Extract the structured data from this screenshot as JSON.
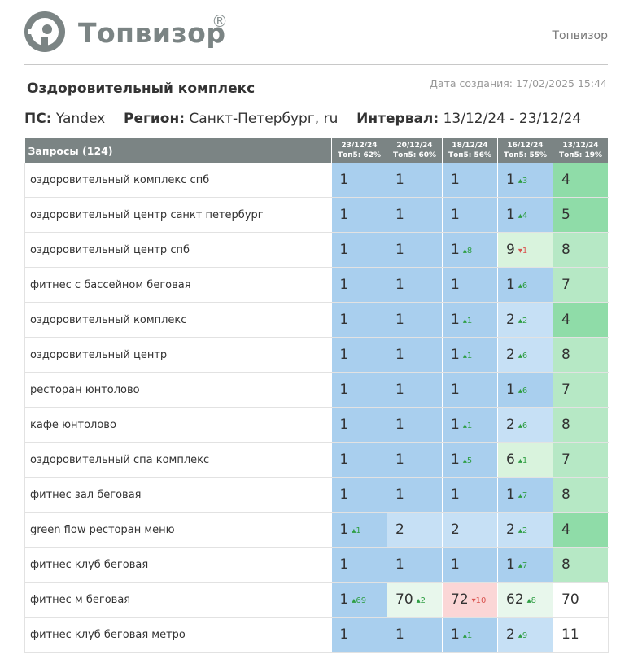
{
  "brand": {
    "name": "Топвизор",
    "reg_mark": "®",
    "header_right": "Топвизор"
  },
  "report": {
    "title": "Оздоровительный комплекс",
    "created": "Дата создания: 17/02/2025 15:44",
    "ps_label": "ПС:",
    "ps_value": "Yandex",
    "region_label": "Регион:",
    "region_value": "Санкт-Петербург, ru",
    "interval_label": "Интервал:",
    "interval_value": "13/12/24 - 23/12/24"
  },
  "table": {
    "query_header": "Запросы (124)",
    "date_columns": [
      {
        "date": "23/12/24",
        "top": "Топ5: 62%"
      },
      {
        "date": "20/12/24",
        "top": "Топ5: 60%"
      },
      {
        "date": "18/12/24",
        "top": "Топ5: 56%"
      },
      {
        "date": "16/12/24",
        "top": "Топ5: 55%"
      },
      {
        "date": "13/12/24",
        "top": "Топ5: 19%"
      }
    ],
    "rows": [
      {
        "query": "оздоровительный комплекс спб",
        "cells": [
          {
            "v": "1",
            "d": "",
            "dir": "",
            "c": "blue"
          },
          {
            "v": "1",
            "d": "",
            "dir": "",
            "c": "blue"
          },
          {
            "v": "1",
            "d": "",
            "dir": "",
            "c": "blue"
          },
          {
            "v": "1",
            "d": "3",
            "dir": "up",
            "c": "blue"
          },
          {
            "v": "4",
            "d": "",
            "dir": "",
            "c": "green"
          }
        ]
      },
      {
        "query": "оздоровительный центр санкт петербург",
        "cells": [
          {
            "v": "1",
            "d": "",
            "dir": "",
            "c": "blue"
          },
          {
            "v": "1",
            "d": "",
            "dir": "",
            "c": "blue"
          },
          {
            "v": "1",
            "d": "",
            "dir": "",
            "c": "blue"
          },
          {
            "v": "1",
            "d": "4",
            "dir": "up",
            "c": "blue"
          },
          {
            "v": "5",
            "d": "",
            "dir": "",
            "c": "green"
          }
        ]
      },
      {
        "query": "оздоровительный центр спб",
        "cells": [
          {
            "v": "1",
            "d": "",
            "dir": "",
            "c": "blue"
          },
          {
            "v": "1",
            "d": "",
            "dir": "",
            "c": "blue"
          },
          {
            "v": "1",
            "d": "8",
            "dir": "up",
            "c": "blue"
          },
          {
            "v": "9",
            "d": "1",
            "dir": "down",
            "c": "lgreen"
          },
          {
            "v": "8",
            "d": "",
            "dir": "",
            "c": "mgreen"
          }
        ]
      },
      {
        "query": "фитнес с бассейном беговая",
        "cells": [
          {
            "v": "1",
            "d": "",
            "dir": "",
            "c": "blue"
          },
          {
            "v": "1",
            "d": "",
            "dir": "",
            "c": "blue"
          },
          {
            "v": "1",
            "d": "",
            "dir": "",
            "c": "blue"
          },
          {
            "v": "1",
            "d": "6",
            "dir": "up",
            "c": "blue"
          },
          {
            "v": "7",
            "d": "",
            "dir": "",
            "c": "mgreen"
          }
        ]
      },
      {
        "query": "оздоровительный комплекс",
        "cells": [
          {
            "v": "1",
            "d": "",
            "dir": "",
            "c": "blue"
          },
          {
            "v": "1",
            "d": "",
            "dir": "",
            "c": "blue"
          },
          {
            "v": "1",
            "d": "1",
            "dir": "up",
            "c": "blue"
          },
          {
            "v": "2",
            "d": "2",
            "dir": "up",
            "c": "lblue"
          },
          {
            "v": "4",
            "d": "",
            "dir": "",
            "c": "green"
          }
        ]
      },
      {
        "query": "оздоровительный центр",
        "cells": [
          {
            "v": "1",
            "d": "",
            "dir": "",
            "c": "blue"
          },
          {
            "v": "1",
            "d": "",
            "dir": "",
            "c": "blue"
          },
          {
            "v": "1",
            "d": "1",
            "dir": "up",
            "c": "blue"
          },
          {
            "v": "2",
            "d": "6",
            "dir": "up",
            "c": "lblue"
          },
          {
            "v": "8",
            "d": "",
            "dir": "",
            "c": "mgreen"
          }
        ]
      },
      {
        "query": "ресторан юнтолово",
        "cells": [
          {
            "v": "1",
            "d": "",
            "dir": "",
            "c": "blue"
          },
          {
            "v": "1",
            "d": "",
            "dir": "",
            "c": "blue"
          },
          {
            "v": "1",
            "d": "",
            "dir": "",
            "c": "blue"
          },
          {
            "v": "1",
            "d": "6",
            "dir": "up",
            "c": "blue"
          },
          {
            "v": "7",
            "d": "",
            "dir": "",
            "c": "mgreen"
          }
        ]
      },
      {
        "query": "кафе юнтолово",
        "cells": [
          {
            "v": "1",
            "d": "",
            "dir": "",
            "c": "blue"
          },
          {
            "v": "1",
            "d": "",
            "dir": "",
            "c": "blue"
          },
          {
            "v": "1",
            "d": "1",
            "dir": "up",
            "c": "blue"
          },
          {
            "v": "2",
            "d": "6",
            "dir": "up",
            "c": "lblue"
          },
          {
            "v": "8",
            "d": "",
            "dir": "",
            "c": "mgreen"
          }
        ]
      },
      {
        "query": "оздоровительный спа комплекс",
        "cells": [
          {
            "v": "1",
            "d": "",
            "dir": "",
            "c": "blue"
          },
          {
            "v": "1",
            "d": "",
            "dir": "",
            "c": "blue"
          },
          {
            "v": "1",
            "d": "5",
            "dir": "up",
            "c": "blue"
          },
          {
            "v": "6",
            "d": "1",
            "dir": "up",
            "c": "lgreen"
          },
          {
            "v": "7",
            "d": "",
            "dir": "",
            "c": "mgreen"
          }
        ]
      },
      {
        "query": "фитнес зал беговая",
        "cells": [
          {
            "v": "1",
            "d": "",
            "dir": "",
            "c": "blue"
          },
          {
            "v": "1",
            "d": "",
            "dir": "",
            "c": "blue"
          },
          {
            "v": "1",
            "d": "",
            "dir": "",
            "c": "blue"
          },
          {
            "v": "1",
            "d": "7",
            "dir": "up",
            "c": "blue"
          },
          {
            "v": "8",
            "d": "",
            "dir": "",
            "c": "mgreen"
          }
        ]
      },
      {
        "query": "green flow ресторан меню",
        "cells": [
          {
            "v": "1",
            "d": "1",
            "dir": "up",
            "c": "blue"
          },
          {
            "v": "2",
            "d": "",
            "dir": "",
            "c": "lblue"
          },
          {
            "v": "2",
            "d": "",
            "dir": "",
            "c": "lblue"
          },
          {
            "v": "2",
            "d": "2",
            "dir": "up",
            "c": "lblue"
          },
          {
            "v": "4",
            "d": "",
            "dir": "",
            "c": "green"
          }
        ]
      },
      {
        "query": "фитнес клуб беговая",
        "cells": [
          {
            "v": "1",
            "d": "",
            "dir": "",
            "c": "blue"
          },
          {
            "v": "1",
            "d": "",
            "dir": "",
            "c": "blue"
          },
          {
            "v": "1",
            "d": "",
            "dir": "",
            "c": "blue"
          },
          {
            "v": "1",
            "d": "7",
            "dir": "up",
            "c": "blue"
          },
          {
            "v": "8",
            "d": "",
            "dir": "",
            "c": "mgreen"
          }
        ]
      },
      {
        "query": "фитнес м беговая",
        "cells": [
          {
            "v": "1",
            "d": "69",
            "dir": "up",
            "c": "blue"
          },
          {
            "v": "70",
            "d": "2",
            "dir": "up",
            "c": "vlgreen"
          },
          {
            "v": "72",
            "d": "10",
            "dir": "down",
            "c": "pink"
          },
          {
            "v": "62",
            "d": "8",
            "dir": "up",
            "c": "vlgreen"
          },
          {
            "v": "70",
            "d": "",
            "dir": "",
            "c": "white"
          }
        ]
      },
      {
        "query": "фитнес клуб беговая метро",
        "cells": [
          {
            "v": "1",
            "d": "",
            "dir": "",
            "c": "blue"
          },
          {
            "v": "1",
            "d": "",
            "dir": "",
            "c": "blue"
          },
          {
            "v": "1",
            "d": "1",
            "dir": "up",
            "c": "blue"
          },
          {
            "v": "2",
            "d": "9",
            "dir": "up",
            "c": "lblue"
          },
          {
            "v": "11",
            "d": "",
            "dir": "",
            "c": "white"
          }
        ]
      }
    ]
  }
}
